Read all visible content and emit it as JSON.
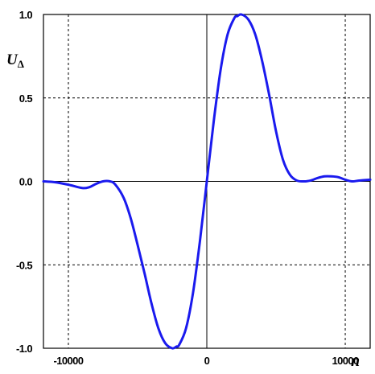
{
  "chart_data": {
    "type": "line",
    "title": "",
    "xlabel": "n",
    "ylabel": "U",
    "ylabel_subscript": "Δ",
    "xlim": [
      -11800,
      11800
    ],
    "ylim": [
      -1.0,
      1.0
    ],
    "x_ticks": [
      {
        "value": -10000,
        "label": "-10000"
      },
      {
        "value": 0,
        "label": "0"
      },
      {
        "value": 10000,
        "label": "10000"
      }
    ],
    "y_ticks": [
      {
        "value": 1.0,
        "label": "1.0"
      },
      {
        "value": 0.5,
        "label": "0.5"
      },
      {
        "value": 0.0,
        "label": "0.0"
      },
      {
        "value": -0.5,
        "label": "-0.5"
      },
      {
        "value": -1.0,
        "label": "-1.0"
      }
    ],
    "grid": true,
    "legend": "none",
    "line_color": "#1a1aee",
    "series": [
      {
        "x": [
          -11800,
          -11000,
          -10000,
          -9000,
          -8500,
          -8000,
          -7500,
          -7000,
          -6600,
          -6000,
          -5500,
          -5000,
          -4500,
          -4000,
          -3500,
          -3000,
          -2500,
          -2200,
          -2000,
          -1500,
          -1000,
          -500,
          0,
          500,
          1000,
          1500,
          2000,
          2200,
          2500,
          3000,
          3500,
          4000,
          4500,
          5000,
          5500,
          6000,
          6500,
          7000,
          7500,
          8000,
          8500,
          9000,
          9500,
          10000,
          10500,
          11000,
          11800
        ],
        "y": [
          0.0,
          -0.005,
          -0.02,
          -0.04,
          -0.035,
          -0.015,
          0.0,
          0.0,
          -0.02,
          -0.1,
          -0.22,
          -0.38,
          -0.55,
          -0.73,
          -0.88,
          -0.97,
          -1.0,
          -0.99,
          -0.98,
          -0.88,
          -0.67,
          -0.36,
          0.0,
          0.36,
          0.67,
          0.88,
          0.98,
          0.99,
          1.0,
          0.97,
          0.88,
          0.72,
          0.52,
          0.3,
          0.13,
          0.04,
          0.005,
          0.0,
          0.005,
          0.02,
          0.03,
          0.03,
          0.025,
          0.01,
          0.0,
          0.005,
          0.01
        ]
      }
    ]
  }
}
